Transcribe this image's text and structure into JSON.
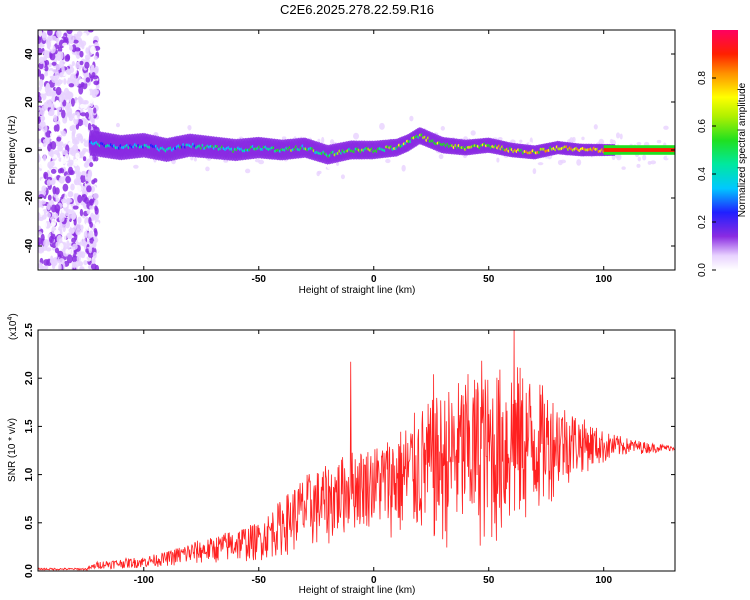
{
  "title": "C2E6.2025.278.22.59.R16",
  "chart_data": [
    {
      "type": "heatmap",
      "xlabel": "Height of straight line (km)",
      "ylabel": "Frequency (Hz)",
      "xlim": [
        -146,
        131
      ],
      "ylim": [
        -50,
        50
      ],
      "x_ticks": [
        -100,
        -50,
        0,
        50,
        100
      ],
      "y_ticks": [
        -40,
        -20,
        0,
        20,
        40
      ],
      "colorbar": {
        "label": "Normalized spectral amplitude",
        "range": [
          0,
          1
        ],
        "ticks": [
          0.0,
          0.2,
          0.4,
          0.6,
          0.8
        ]
      },
      "ridge": {
        "x": [
          -123,
          -110,
          -100,
          -90,
          -80,
          -70,
          -60,
          -50,
          -40,
          -30,
          -20,
          -10,
          0,
          10,
          15,
          20,
          25,
          30,
          40,
          50,
          60,
          70,
          80,
          90,
          100,
          131
        ],
        "y": [
          3,
          1,
          2,
          0,
          2,
          1,
          0,
          1,
          0,
          1,
          -2,
          0,
          0,
          1,
          3,
          6,
          4,
          2,
          1,
          2,
          0,
          -1,
          1,
          0,
          0,
          0
        ]
      }
    },
    {
      "type": "line",
      "xlabel": "Height of straight line (km)",
      "ylabel": "SNR (10 * v/v)",
      "y_multiplier": "(x10",
      "y_multiplier_exp": "4",
      "y_multiplier_close": ")",
      "xlim": [
        -146,
        131
      ],
      "ylim": [
        0,
        2.5
      ],
      "x_ticks": [
        -100,
        -50,
        0,
        50,
        100
      ],
      "y_ticks": [
        0.0,
        0.5,
        1.0,
        1.5,
        2.0,
        2.5
      ],
      "color": "#ff2020",
      "envelope": {
        "x": [
          -146,
          -125,
          -120,
          -100,
          -90,
          -80,
          -70,
          -60,
          -50,
          -40,
          -30,
          -20,
          -10,
          0,
          10,
          20,
          30,
          40,
          50,
          60,
          70,
          80,
          90,
          100,
          110,
          120,
          131
        ],
        "upper": [
          0.02,
          0.03,
          0.1,
          0.15,
          0.2,
          0.3,
          0.35,
          0.45,
          0.5,
          0.75,
          1.0,
          1.1,
          1.25,
          1.3,
          1.45,
          1.7,
          1.85,
          2.05,
          2.05,
          2.2,
          2.0,
          1.8,
          1.6,
          1.45,
          1.38,
          1.33,
          1.3
        ],
        "lower": [
          0.0,
          0.0,
          0.02,
          0.03,
          0.05,
          0.05,
          0.08,
          0.08,
          0.1,
          0.15,
          0.2,
          0.25,
          0.4,
          0.45,
          0.3,
          0.3,
          0.2,
          0.25,
          0.2,
          0.3,
          0.5,
          0.8,
          1.0,
          1.1,
          1.2,
          1.22,
          1.25
        ]
      },
      "spikes": [
        {
          "x": -10,
          "y": 2.17
        },
        {
          "x": 61,
          "y": 2.5
        },
        {
          "x": 26,
          "y": 2.04
        },
        {
          "x": 47,
          "y": 2.18
        }
      ]
    }
  ]
}
